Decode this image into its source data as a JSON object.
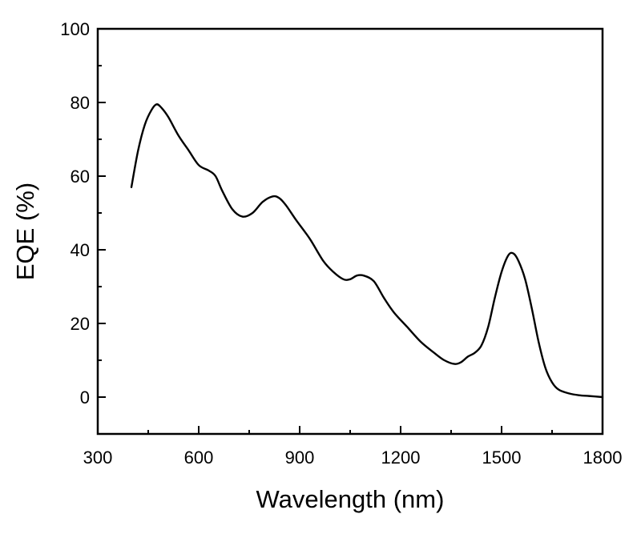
{
  "chart_data": {
    "type": "line",
    "xlabel": "Wavelength (nm)",
    "ylabel": "EQE (%)",
    "xlim": [
      300,
      1800
    ],
    "ylim": [
      -10,
      100
    ],
    "x_ticks": [
      300,
      600,
      900,
      1200,
      1500,
      1800
    ],
    "y_ticks": [
      0,
      20,
      40,
      60,
      80,
      100
    ],
    "x_minor_step": 150,
    "y_minor_step": 10,
    "grid": false,
    "legend": "none",
    "series": [
      {
        "color": "#000000",
        "x": [
          400,
          420,
          440,
          460,
          475,
          490,
          510,
          540,
          570,
          600,
          630,
          650,
          670,
          700,
          730,
          760,
          790,
          820,
          840,
          860,
          890,
          930,
          970,
          1000,
          1030,
          1050,
          1070,
          1090,
          1120,
          1150,
          1180,
          1220,
          1260,
          1300,
          1330,
          1360,
          1380,
          1400,
          1420,
          1440,
          1460,
          1480,
          1500,
          1520,
          1535,
          1550,
          1570,
          1590,
          1610,
          1630,
          1650,
          1670,
          1700,
          1730,
          1760,
          1800
        ],
        "y": [
          57,
          67,
          74,
          78,
          79.5,
          78.5,
          76,
          71,
          67,
          63,
          61.5,
          60,
          56,
          51,
          49,
          50,
          53,
          54.5,
          54,
          52,
          48,
          43,
          37,
          34,
          32,
          32,
          33,
          33,
          31.5,
          27,
          23,
          19,
          15,
          12,
          10,
          9,
          9.5,
          11,
          12,
          14,
          19,
          27,
          34,
          38.5,
          39,
          37,
          32,
          24,
          15,
          8,
          4,
          2,
          1,
          0.5,
          0.3,
          0
        ]
      }
    ]
  }
}
